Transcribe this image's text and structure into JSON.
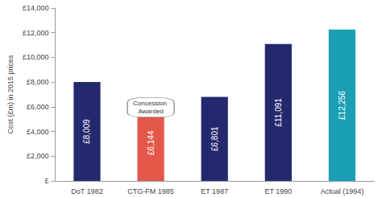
{
  "chart_data": {
    "type": "bar",
    "y_label": "Cost (£m) in 2015 prices",
    "categories": [
      "DoT 1982",
      "CTG-FM 1985",
      "ET 1987",
      "ET 1990",
      "Actual (1994)"
    ],
    "values": [
      8009,
      6144,
      6801,
      11091,
      12256
    ],
    "value_labels": [
      "£8,009",
      "£6,144",
      "£6,801",
      "£11,091",
      "£12,256"
    ],
    "colors": [
      "#24286e",
      "#e4574b",
      "#24286e",
      "#24286e",
      "#1b9fb5"
    ],
    "ylim": [
      0,
      14000
    ],
    "yticks": [
      {
        "value": 0,
        "label": "£"
      },
      {
        "value": 2000,
        "label": "£2,000"
      },
      {
        "value": 4000,
        "label": "£4,000"
      },
      {
        "value": 6000,
        "label": "£6,000"
      },
      {
        "value": 8000,
        "label": "£8,000"
      },
      {
        "value": 10000,
        "label": "£10,000"
      },
      {
        "value": 12000,
        "label": "£12,000"
      },
      {
        "value": 14000,
        "label": "£14,000"
      }
    ],
    "grid": false,
    "data_labels": true,
    "annotations": [
      {
        "text": "Concession Awarded",
        "category": "CTG-FM 1985"
      }
    ]
  }
}
